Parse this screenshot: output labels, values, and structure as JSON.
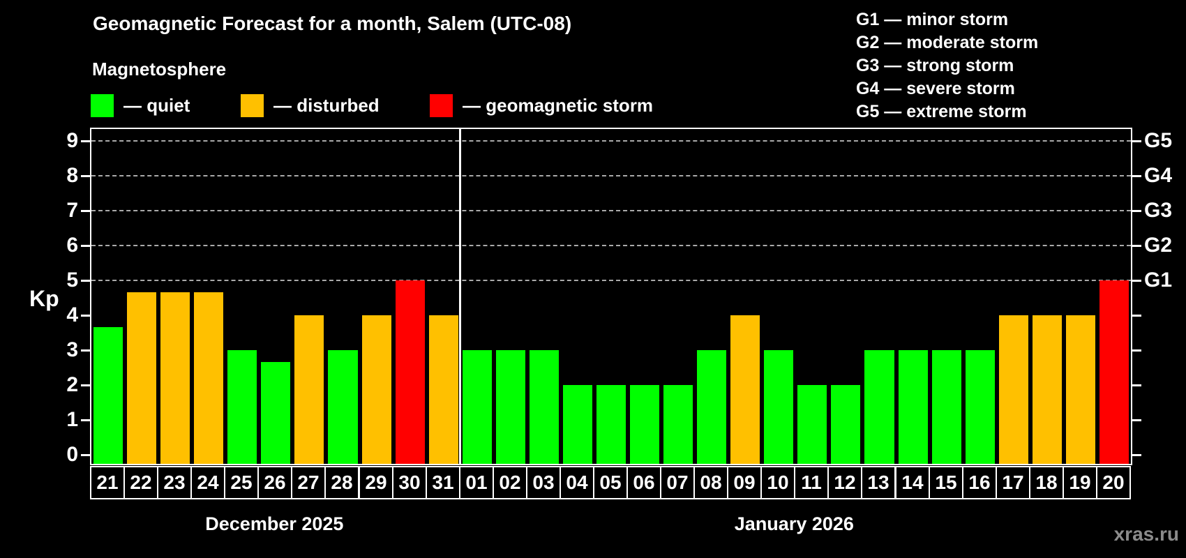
{
  "header": {
    "title": "Geomagnetic Forecast for a month, Salem (UTC-08)",
    "subtitle": "Magnetosphere"
  },
  "legend": {
    "items": [
      {
        "name": "quiet",
        "label": "— quiet",
        "color": "#00ff00"
      },
      {
        "name": "disturbed",
        "label": "— disturbed",
        "color": "#ffc000"
      },
      {
        "name": "storm",
        "label": "— geomagnetic storm",
        "color": "#ff0000"
      }
    ]
  },
  "storm_legend": {
    "lines": [
      "G1 — minor storm",
      "G2 — moderate storm",
      "G3 — strong storm",
      "G4 — severe storm",
      "G5 — extreme storm"
    ]
  },
  "watermark": "xras.ru",
  "chart_data": {
    "type": "bar",
    "title": "Geomagnetic Forecast for a month, Salem (UTC-08)",
    "ylabel": "Kp",
    "ylim": [
      0,
      9
    ],
    "grid": "dashed horizontal at Kp 5-9",
    "legend_position": "top",
    "y_ticks": [
      0,
      1,
      2,
      3,
      4,
      5,
      6,
      7,
      8,
      9
    ],
    "right_axis_labels": [
      {
        "value": 5,
        "label": "G1"
      },
      {
        "value": 6,
        "label": "G2"
      },
      {
        "value": 7,
        "label": "G3"
      },
      {
        "value": 8,
        "label": "G4"
      },
      {
        "value": 9,
        "label": "G5"
      }
    ],
    "gridlines_at": [
      5,
      6,
      7,
      8,
      9
    ],
    "categories": [
      "21",
      "22",
      "23",
      "24",
      "25",
      "26",
      "27",
      "28",
      "29",
      "30",
      "31",
      "01",
      "02",
      "03",
      "04",
      "05",
      "06",
      "07",
      "08",
      "09",
      "10",
      "11",
      "12",
      "13",
      "14",
      "15",
      "16",
      "17",
      "18",
      "19",
      "20"
    ],
    "values": [
      3.67,
      4.67,
      4.67,
      4.67,
      3,
      2.67,
      4,
      3,
      4,
      5,
      4,
      3,
      3,
      3,
      2,
      2,
      2,
      2,
      3,
      4,
      3,
      2,
      2,
      3,
      3,
      3,
      3,
      4,
      4,
      4,
      5
    ],
    "statuses": [
      "quiet",
      "disturbed",
      "disturbed",
      "disturbed",
      "quiet",
      "quiet",
      "disturbed",
      "quiet",
      "disturbed",
      "storm",
      "disturbed",
      "quiet",
      "quiet",
      "quiet",
      "quiet",
      "quiet",
      "quiet",
      "quiet",
      "quiet",
      "disturbed",
      "quiet",
      "quiet",
      "quiet",
      "quiet",
      "quiet",
      "quiet",
      "quiet",
      "disturbed",
      "disturbed",
      "disturbed",
      "storm"
    ],
    "status_colors": {
      "quiet": "#00ff00",
      "disturbed": "#ffc000",
      "storm": "#ff0000"
    },
    "groups": [
      {
        "label": "December 2025",
        "start": 0,
        "count": 11
      },
      {
        "label": "January 2026",
        "start": 11,
        "count": 20
      }
    ]
  }
}
